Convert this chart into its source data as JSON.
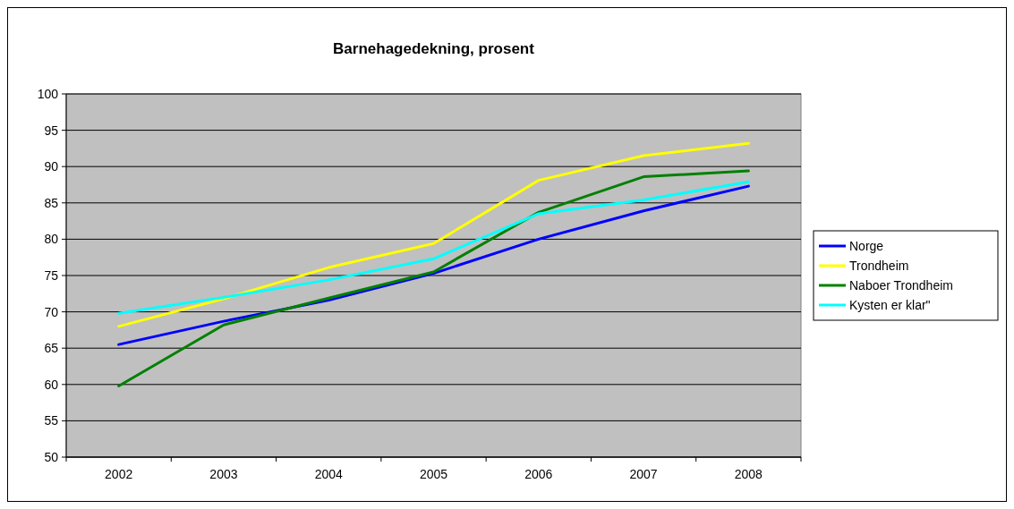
{
  "chart_data": {
    "type": "line",
    "title": "Barnehagedekning, prosent",
    "categories": [
      "2002",
      "2003",
      "2004",
      "2005",
      "2006",
      "2007",
      "2008"
    ],
    "series": [
      {
        "name": "Norge",
        "color": "#0000ff",
        "values": [
          65.5,
          68.7,
          71.6,
          75.3,
          80.0,
          83.9,
          87.3
        ]
      },
      {
        "name": "Trondheim",
        "color": "#ffff00",
        "values": [
          68.0,
          71.8,
          76.1,
          79.4,
          88.1,
          91.5,
          93.2
        ]
      },
      {
        "name": "Naboer Trondheim",
        "color": "#008000",
        "values": [
          59.8,
          68.2,
          71.9,
          75.5,
          83.7,
          88.6,
          89.4
        ]
      },
      {
        "name": "Kysten er klar\"",
        "color": "#00ffff",
        "values": [
          69.8,
          72.0,
          74.4,
          77.3,
          83.5,
          85.4,
          87.9
        ]
      }
    ],
    "ylim": [
      50,
      100
    ],
    "yticks": [
      50,
      55,
      60,
      65,
      70,
      75,
      80,
      85,
      90,
      95,
      100
    ],
    "grid": "y",
    "legend": "right",
    "marker": "none",
    "line_style": "solid"
  }
}
